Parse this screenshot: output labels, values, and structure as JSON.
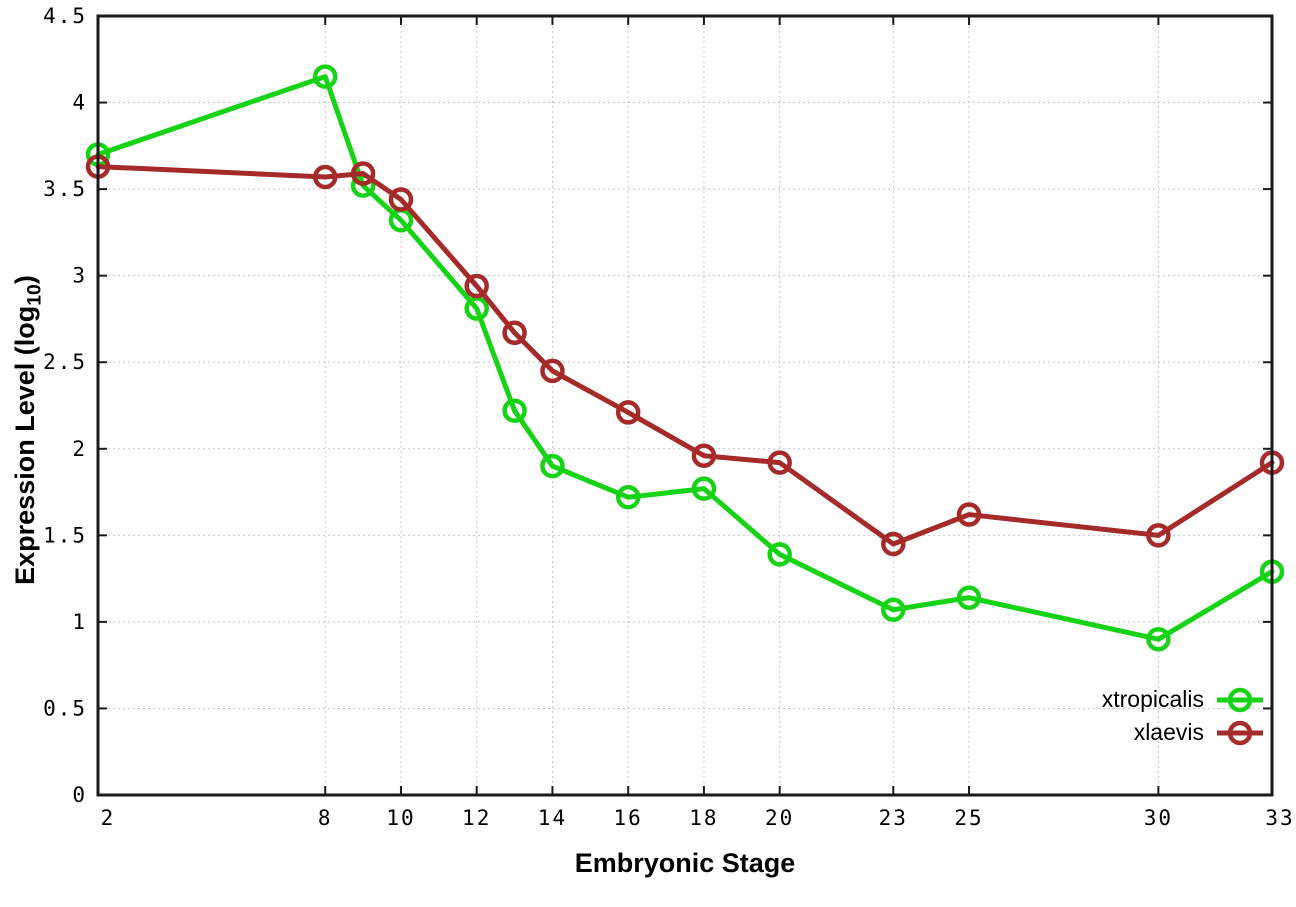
{
  "chart_data": {
    "type": "line",
    "title": "",
    "xlabel": "Embryonic Stage",
    "ylabel": "Expression Level (log10)",
    "ylabel_parts": {
      "prefix": "Expression Level (log",
      "sub": "10",
      "suffix": ")"
    },
    "x": [
      2,
      8,
      9,
      10,
      12,
      13,
      14,
      16,
      18,
      20,
      23,
      25,
      30,
      33
    ],
    "xlim": [
      2,
      33
    ],
    "ylim": [
      0,
      4.5
    ],
    "x_ticks": [
      2,
      8,
      10,
      12,
      14,
      16,
      18,
      20,
      23,
      25,
      30,
      33
    ],
    "y_ticks": [
      0,
      0.5,
      1,
      1.5,
      2,
      2.5,
      3,
      3.5,
      4,
      4.5
    ],
    "grid": true,
    "grid_style": "dotted",
    "legend_position": "inside-bottom-right",
    "axis_color": "#1a1a1a",
    "grid_color": "#c4c4c4",
    "marker": "open-circle",
    "series": [
      {
        "name": "xtropicalis",
        "color": "#16d316",
        "values": [
          3.7,
          4.15,
          3.52,
          3.32,
          2.81,
          2.22,
          1.9,
          1.72,
          1.77,
          1.39,
          1.07,
          1.14,
          0.9,
          1.29
        ]
      },
      {
        "name": "xlaevis",
        "color": "#a52a2a",
        "values": [
          3.63,
          3.57,
          3.59,
          3.44,
          2.94,
          2.67,
          2.45,
          2.21,
          1.96,
          1.92,
          1.45,
          1.62,
          1.5,
          1.92
        ]
      }
    ]
  }
}
